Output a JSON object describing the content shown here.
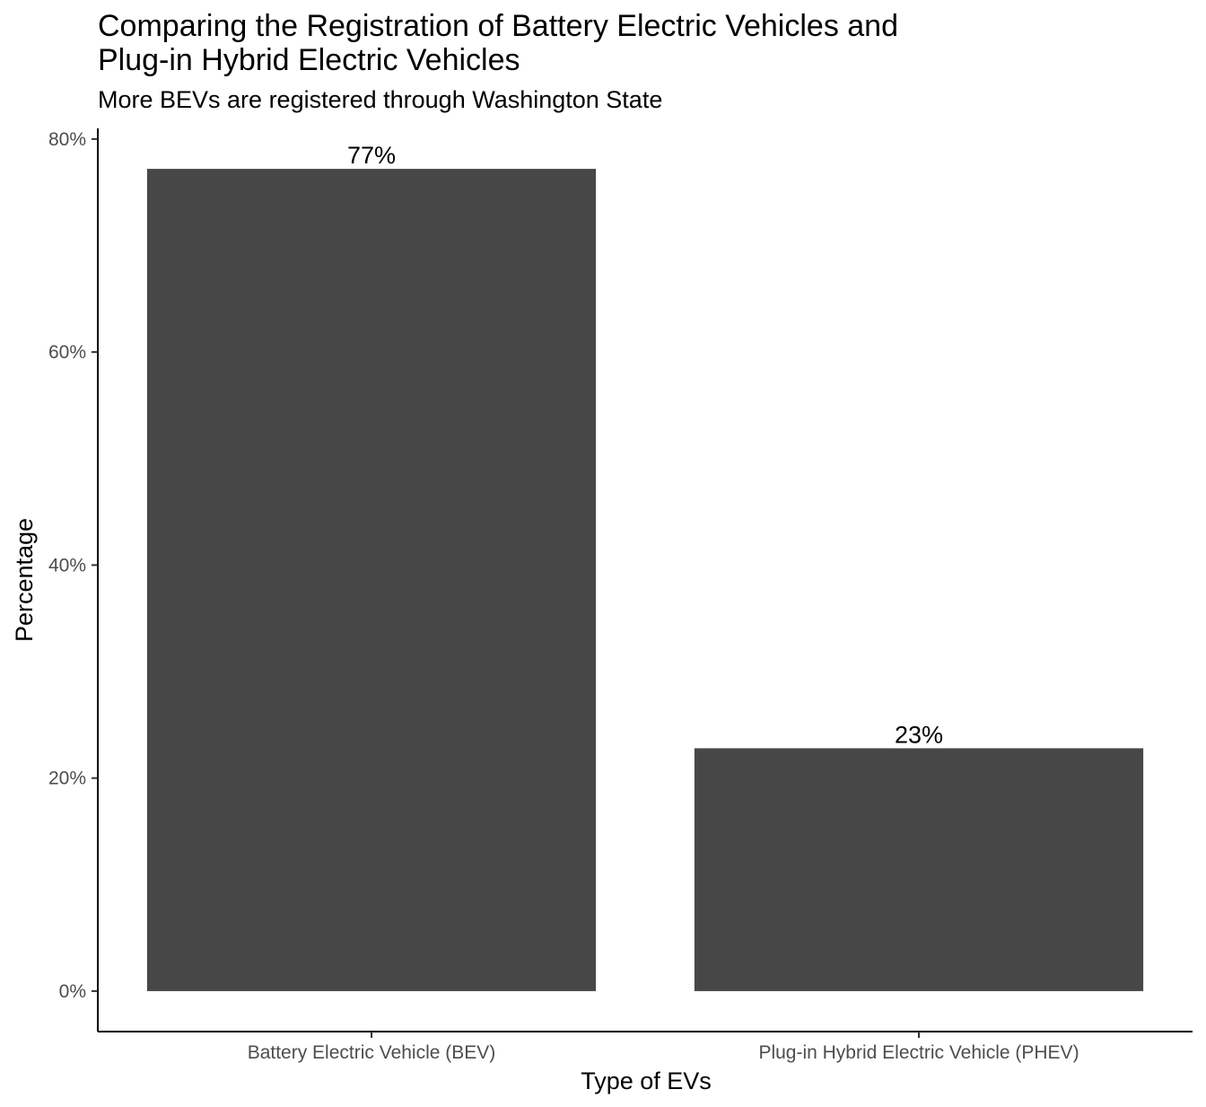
{
  "chart_data": {
    "type": "bar",
    "title_lines": [
      "Comparing the Registration of Battery Electric Vehicles and",
      "Plug-in Hybrid Electric Vehicles"
    ],
    "subtitle": "More BEVs are registered through Washington State",
    "xlabel": "Type of EVs",
    "ylabel": "Percentage",
    "categories": [
      "Battery Electric Vehicle (BEV)",
      "Plug-in Hybrid Electric Vehicle (PHEV)"
    ],
    "values": [
      77.2,
      22.8
    ],
    "data_labels": [
      "77%",
      "23%"
    ],
    "yticks": [
      0,
      20,
      40,
      60,
      80
    ],
    "ytick_labels": [
      "0%",
      "20%",
      "40%",
      "60%",
      "80%"
    ],
    "ylim": [
      -3.8,
      81
    ],
    "grid": false,
    "bar_color": "#474747"
  }
}
